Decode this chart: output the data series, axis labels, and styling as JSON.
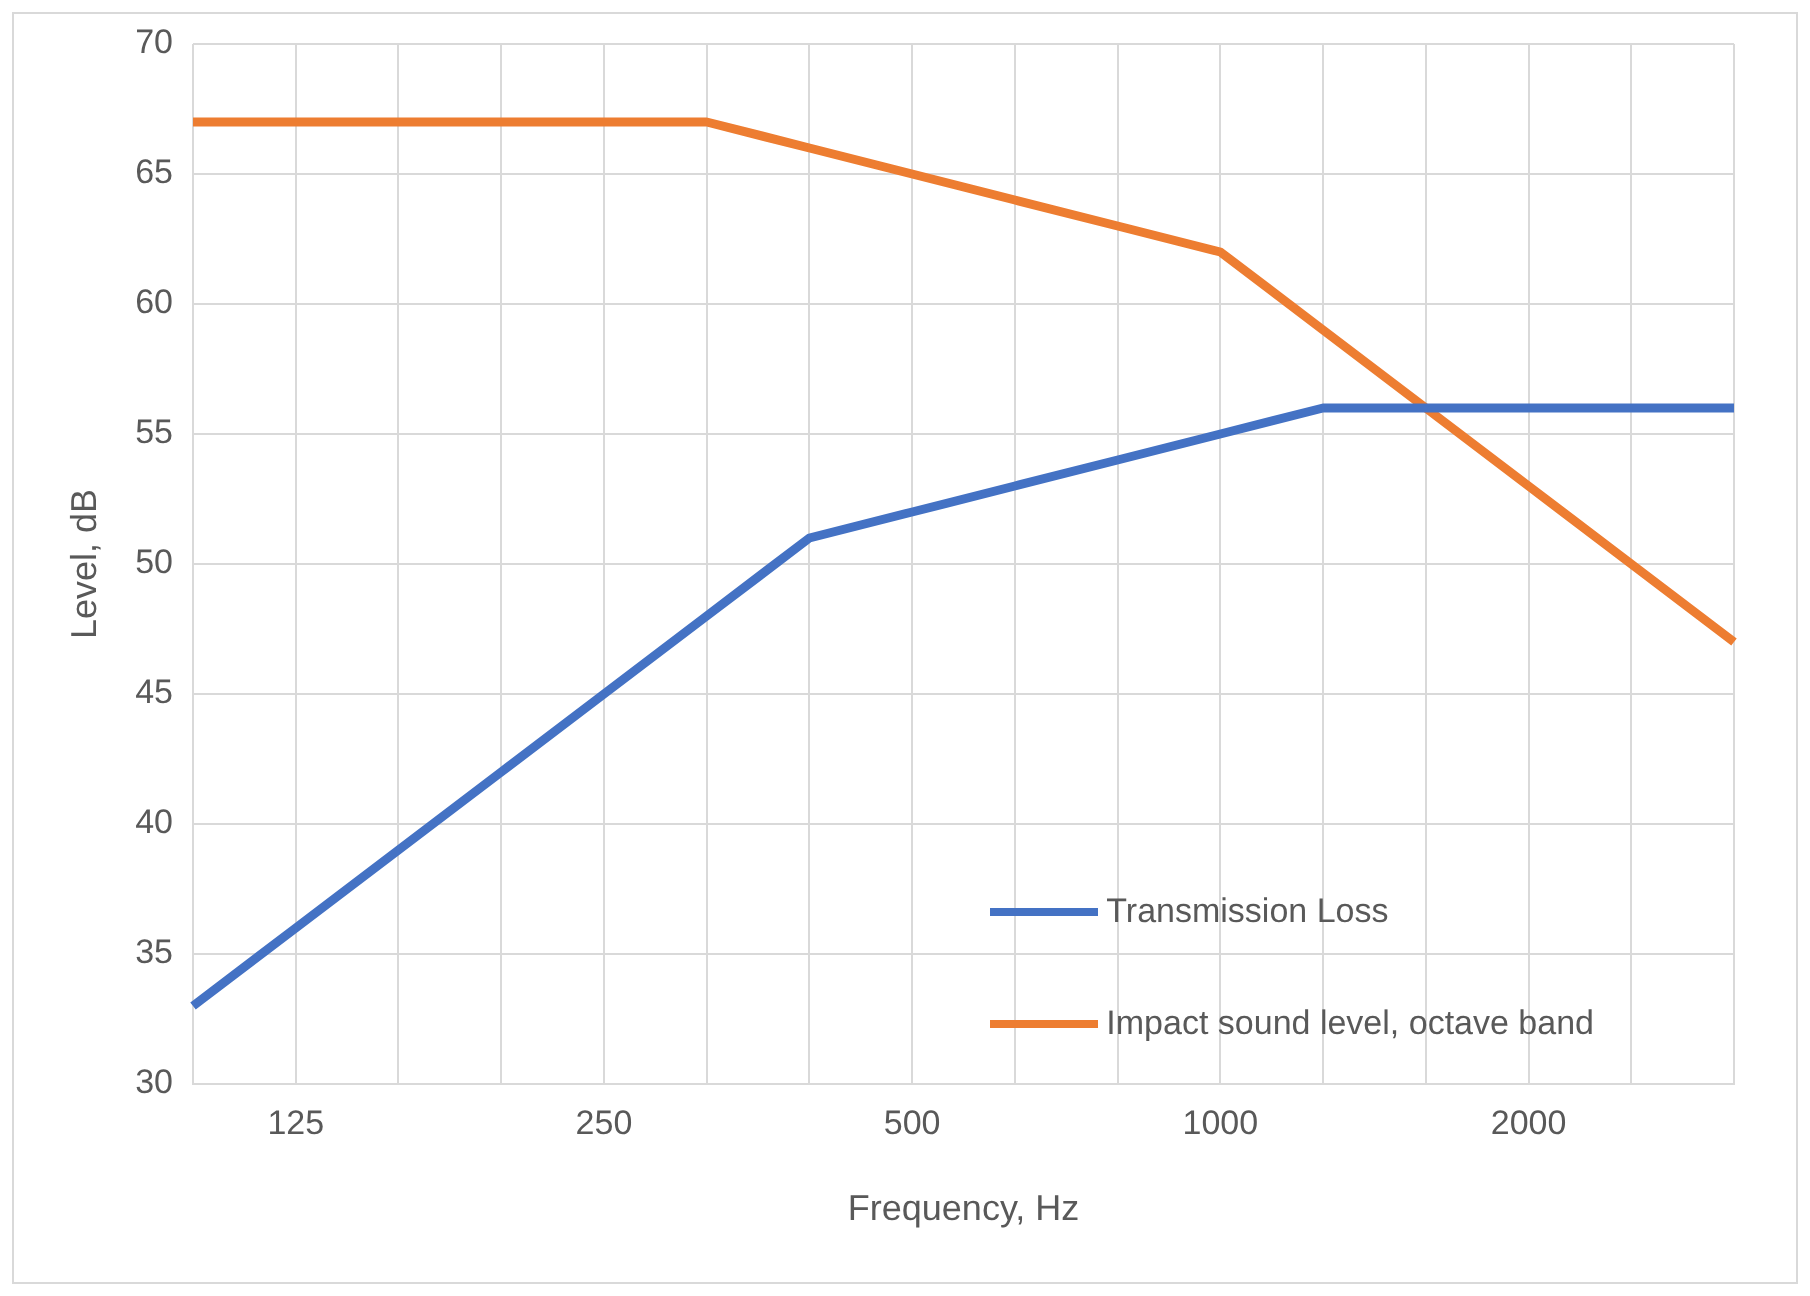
{
  "chart_data": {
    "type": "line",
    "xlabel": "Frequency, Hz",
    "ylabel": "Level, dB",
    "categories": [
      null,
      "125",
      null,
      null,
      "250",
      null,
      null,
      "500",
      null,
      null,
      "1000",
      null,
      null,
      "2000",
      null,
      null
    ],
    "series": [
      {
        "name": "Transmission Loss",
        "color": "#4472c4",
        "values": [
          33,
          36,
          39,
          42,
          45,
          48,
          51,
          52,
          53,
          54,
          55,
          56,
          56,
          56,
          56,
          56
        ]
      },
      {
        "name": "Impact sound level, octave band",
        "color": "#ed7d31",
        "values": [
          67,
          67,
          67,
          67,
          67,
          67,
          66,
          65,
          64,
          63,
          62,
          59,
          56,
          53,
          50,
          47
        ]
      }
    ],
    "ylim": [
      30,
      70
    ],
    "yticks": [
      30,
      35,
      40,
      45,
      50,
      55,
      60,
      65,
      70
    ],
    "grid": true,
    "legend": "bottom right",
    "marker": "none",
    "line_style": "solid"
  }
}
